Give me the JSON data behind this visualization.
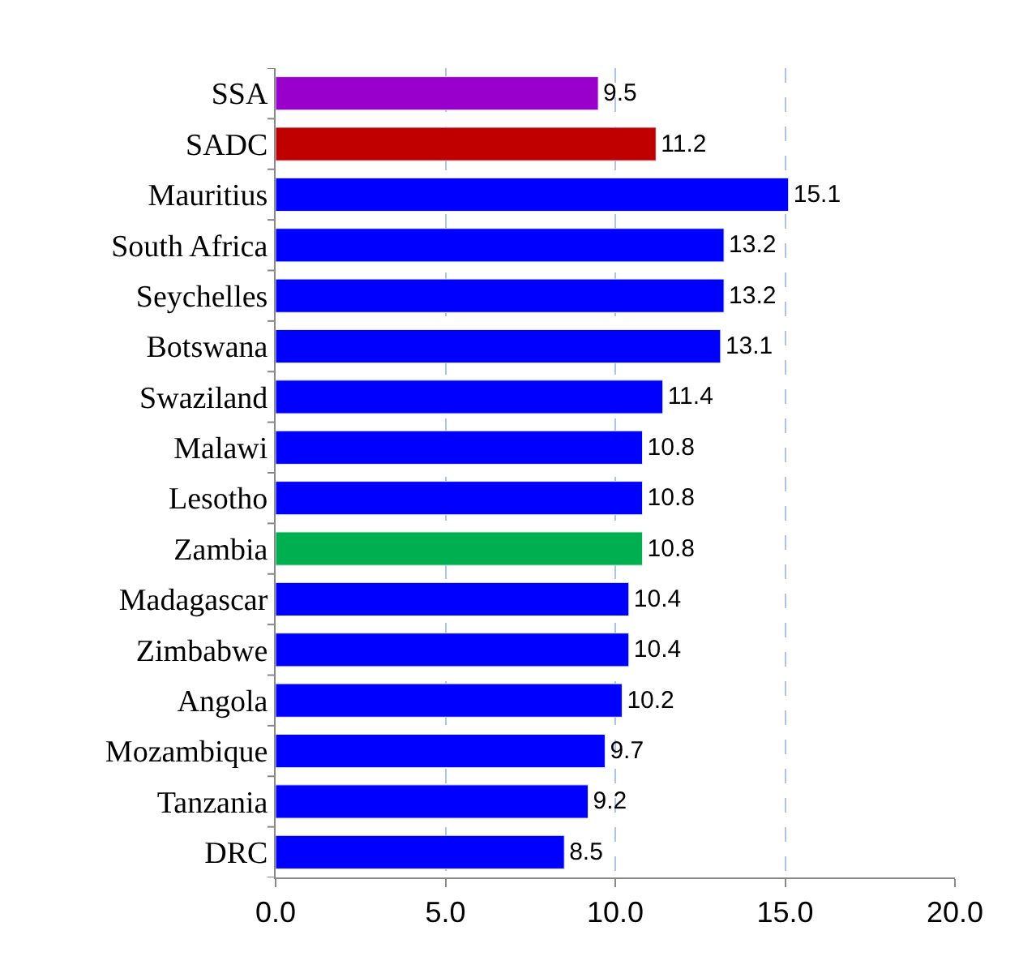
{
  "chart_data": {
    "type": "bar",
    "orientation": "horizontal",
    "categories": [
      "SSA",
      "SADC",
      "Mauritius",
      "South Africa",
      "Seychelles",
      "Botswana",
      "Swaziland",
      "Malawi",
      "Lesotho",
      "Zambia",
      "Madagascar",
      "Zimbabwe",
      "Angola",
      "Mozambique",
      "Tanzania",
      "DRC"
    ],
    "values": [
      9.5,
      11.2,
      15.1,
      13.2,
      13.2,
      13.1,
      11.4,
      10.8,
      10.8,
      10.8,
      10.4,
      10.4,
      10.2,
      9.7,
      9.2,
      8.5
    ],
    "colors": [
      "#9900cc",
      "#c00000",
      "#0000ff",
      "#0000ff",
      "#0000ff",
      "#0000ff",
      "#0000ff",
      "#0000ff",
      "#0000ff",
      "#00b050",
      "#0000ff",
      "#0000ff",
      "#0000ff",
      "#0000ff",
      "#0000ff",
      "#0000ff"
    ],
    "data_labels": true,
    "xlim": [
      0,
      20
    ],
    "xticks": [
      {
        "value": 0,
        "label": "0.0"
      },
      {
        "value": 5,
        "label": "5.0"
      },
      {
        "value": 10,
        "label": "10.0"
      },
      {
        "value": 15,
        "label": "15.0"
      },
      {
        "value": 20,
        "label": "20.0"
      }
    ],
    "grid": "x"
  }
}
